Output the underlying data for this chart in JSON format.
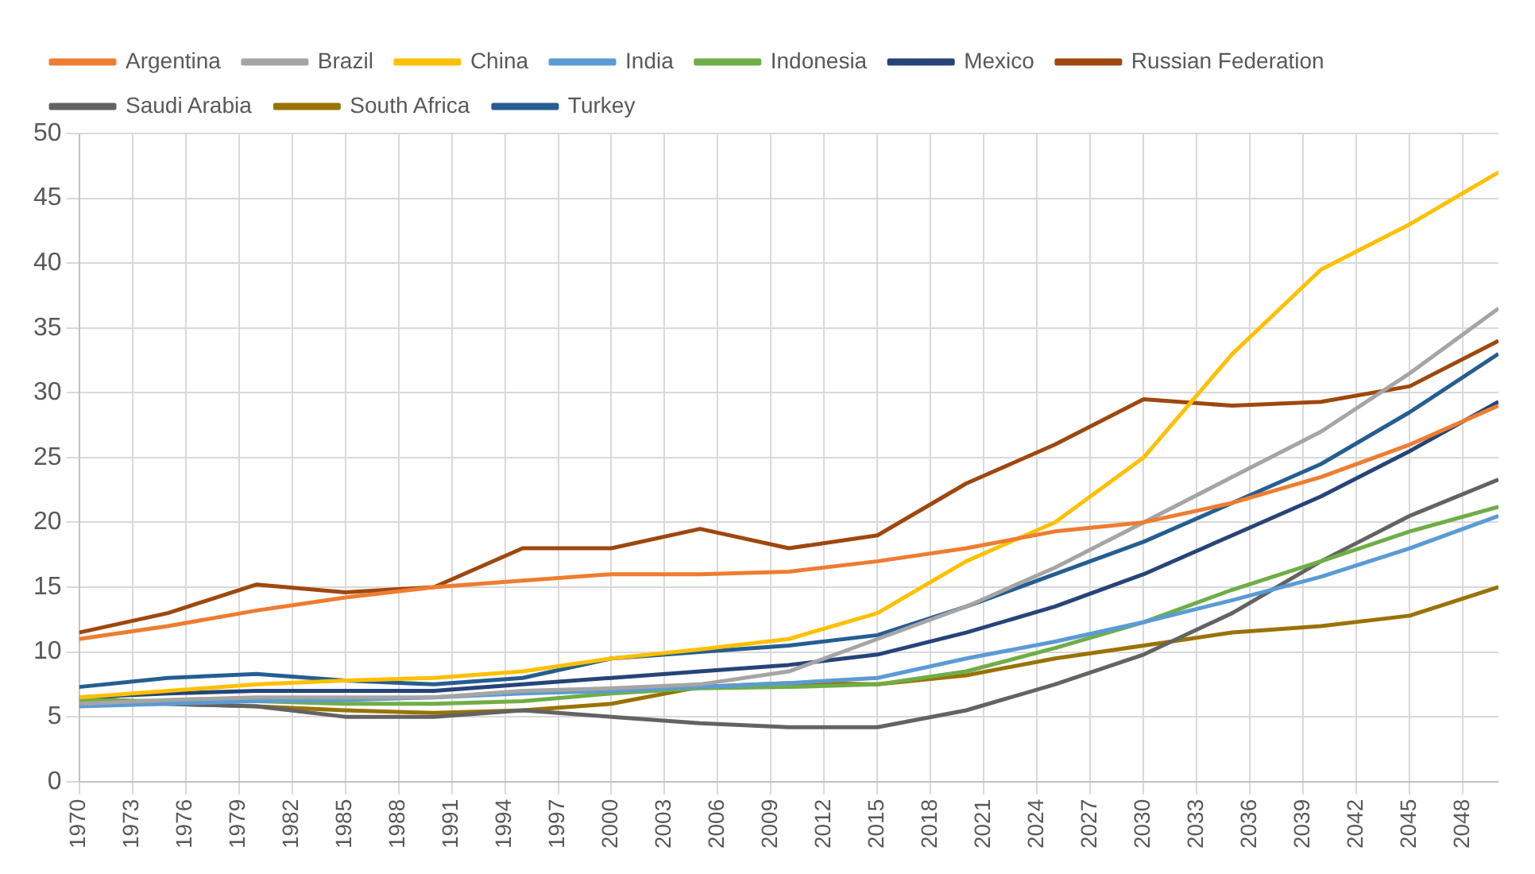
{
  "chart_data": {
    "type": "line",
    "x": [
      1970,
      1975,
      1980,
      1985,
      1990,
      1995,
      2000,
      2005,
      2010,
      2015,
      2020,
      2025,
      2030,
      2035,
      2040,
      2045,
      2050
    ],
    "series": [
      {
        "name": "Argentina",
        "color": "#ed7d31",
        "values": [
          11,
          12,
          13.2,
          14.2,
          15,
          15.5,
          16,
          16,
          16.2,
          17,
          18,
          19.3,
          20,
          21.5,
          23.5,
          26,
          29
        ]
      },
      {
        "name": "Brazil",
        "color": "#a5a5a5",
        "values": [
          6,
          6.3,
          6.5,
          6.5,
          6.5,
          7,
          7.2,
          7.5,
          8.5,
          11,
          13.5,
          16.5,
          20,
          23.5,
          27,
          31.5,
          36.5
        ]
      },
      {
        "name": "China",
        "color": "#ffc000",
        "values": [
          6.5,
          7,
          7.5,
          7.8,
          8,
          8.5,
          9.5,
          10.2,
          11,
          13,
          17,
          20,
          25,
          33,
          39.5,
          43,
          47
        ]
      },
      {
        "name": "India",
        "color": "#5b9bd5",
        "values": [
          5.8,
          6,
          6.2,
          6.3,
          6.5,
          6.8,
          7,
          7.3,
          7.6,
          8,
          9.5,
          10.8,
          12.3,
          14,
          15.8,
          18,
          20.5
        ]
      },
      {
        "name": "Indonesia",
        "color": "#70ad47",
        "values": [
          6.3,
          6.2,
          6.2,
          6,
          6,
          6.2,
          6.8,
          7.2,
          7.3,
          7.5,
          8.5,
          10.3,
          12.3,
          14.8,
          17,
          19.3,
          21.2
        ]
      },
      {
        "name": "Mexico",
        "color": "#264478",
        "values": [
          6.5,
          6.8,
          7,
          7,
          7,
          7.5,
          8,
          8.5,
          9,
          9.8,
          11.5,
          13.5,
          16,
          19,
          22,
          25.5,
          29.3
        ]
      },
      {
        "name": "Russian Federation",
        "color": "#9e480e",
        "values": [
          11.5,
          13,
          15.2,
          14.6,
          15,
          18,
          18,
          19.5,
          18,
          19,
          23,
          26,
          29.5,
          29,
          29.3,
          30.5,
          34
        ]
      },
      {
        "name": "Saudi Arabia",
        "color": "#636363",
        "values": [
          6.5,
          6,
          5.8,
          5,
          5,
          5.5,
          5,
          4.5,
          4.2,
          4.2,
          5.5,
          7.5,
          9.8,
          13,
          17,
          20.5,
          23.3
        ]
      },
      {
        "name": "South Africa",
        "color": "#997300",
        "values": [
          6,
          6,
          5.8,
          5.5,
          5.3,
          5.5,
          6,
          7.3,
          7.6,
          7.5,
          8.2,
          9.5,
          10.5,
          11.5,
          12,
          12.8,
          15
        ]
      },
      {
        "name": "Turkey",
        "color": "#255e91",
        "values": [
          7.3,
          8,
          8.3,
          7.8,
          7.5,
          8,
          9.5,
          10,
          10.5,
          11.3,
          13.5,
          16,
          18.5,
          21.5,
          24.5,
          28.5,
          33
        ]
      }
    ],
    "xlim": [
      1970,
      2050
    ],
    "xticks": [
      1970,
      1973,
      1976,
      1979,
      1982,
      1985,
      1988,
      1991,
      1994,
      1997,
      2000,
      2003,
      2006,
      2009,
      2012,
      2015,
      2018,
      2021,
      2024,
      2027,
      2030,
      2033,
      2036,
      2039,
      2042,
      2045,
      2048
    ],
    "ylim": [
      0,
      50
    ],
    "yticks": [
      0,
      5,
      10,
      15,
      20,
      25,
      30,
      35,
      40,
      45,
      50
    ],
    "grid": true,
    "legend": "top",
    "marker": "none",
    "line_style": "solid"
  }
}
